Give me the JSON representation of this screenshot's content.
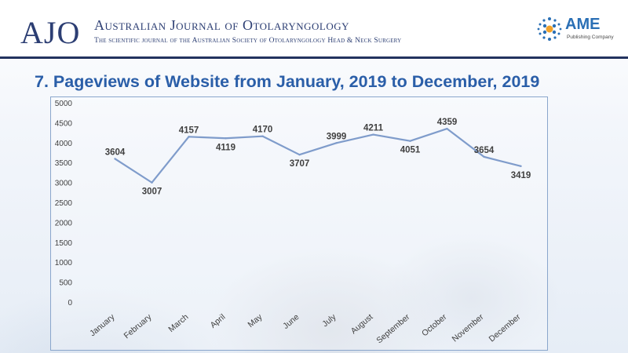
{
  "header": {
    "logo_text": "AJO",
    "journal_title": "Australian Journal of Otolaryngology",
    "journal_subtitle": "The scientific journal of the Australian Society of Otolaryngology Head & Neck Surgery",
    "publisher_name": "AME",
    "publisher_tagline": "Publishing Company"
  },
  "slide": {
    "title": "7. Pageviews of Website from January, 2019 to December, 2019"
  },
  "colors": {
    "navy": "#23335f",
    "title_blue": "#2a5ea8",
    "line": "#7f9ccb",
    "chart_border": "#8aa6cc"
  },
  "chart_data": {
    "type": "line",
    "title": "",
    "xlabel": "",
    "ylabel": "",
    "categories": [
      "January",
      "February",
      "March",
      "April",
      "May",
      "June",
      "July",
      "August",
      "September",
      "October",
      "November",
      "December"
    ],
    "values": [
      3604,
      3007,
      4157,
      4119,
      4170,
      3707,
      3999,
      4211,
      4051,
      4359,
      3654,
      3419
    ],
    "ylim": [
      0,
      5000
    ],
    "yticks": [
      0,
      500,
      1000,
      1500,
      2000,
      2500,
      3000,
      3500,
      4000,
      4500,
      5000
    ],
    "grid": false,
    "legend": "none"
  }
}
